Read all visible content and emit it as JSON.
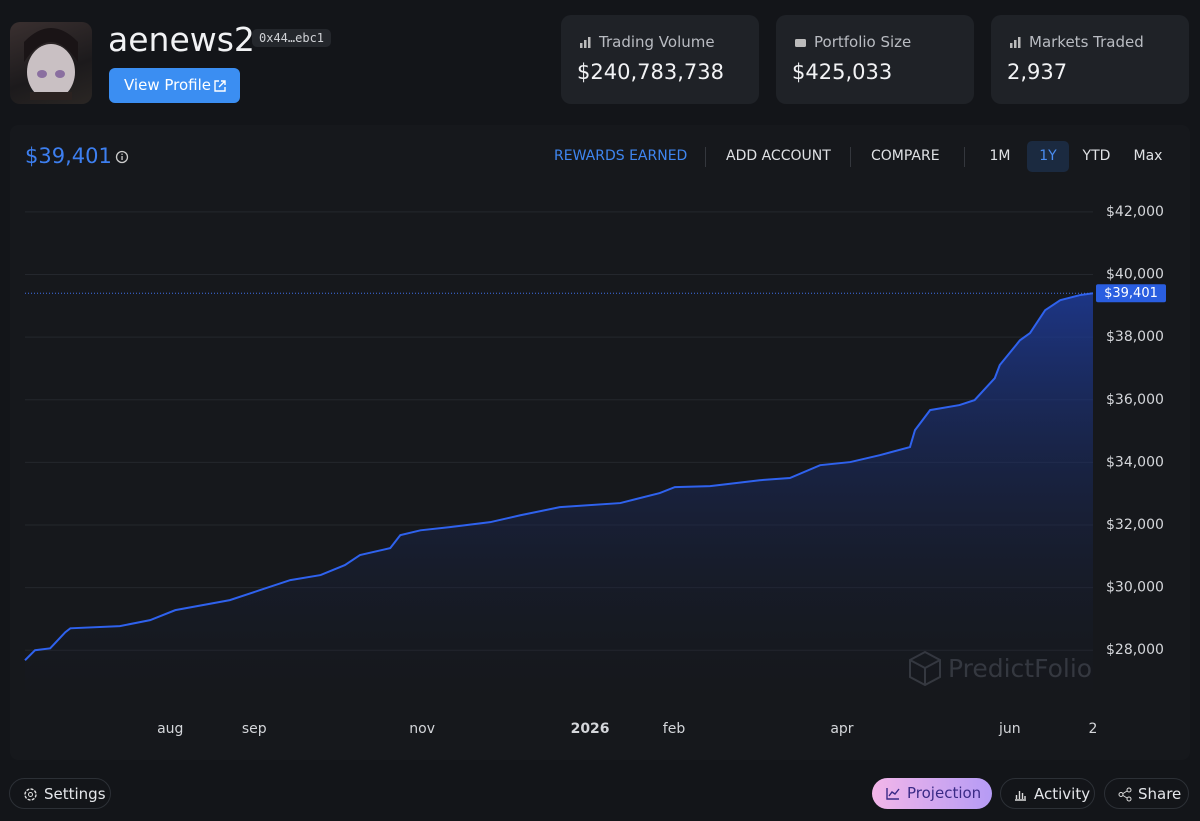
{
  "profile": {
    "username": "aenews2",
    "address": "0x44…ebc1",
    "view_profile": "View Profile"
  },
  "stats": [
    {
      "label": "Trading Volume",
      "value": "$240,783,738"
    },
    {
      "label": "Portfolio Size",
      "value": "$425,033"
    },
    {
      "label": "Markets Traded",
      "value": "2,937"
    }
  ],
  "nav": {
    "rewards": "REWARDS EARNED",
    "add_account": "ADD ACCOUNT",
    "compare": "COMPARE"
  },
  "ranges": [
    "1M",
    "1Y",
    "YTD",
    "Max"
  ],
  "selected_range": "1Y",
  "chart_data": {
    "type": "area",
    "color": "#2f62ee",
    "grid": true,
    "watermark": "PredictFolio",
    "reference": {
      "value": 39401,
      "label": "$39,401"
    },
    "x": [
      -1.73,
      -1.61,
      -1.43,
      -1.25,
      -1.19,
      -0.6,
      -0.24,
      0.06,
      0.71,
      1.07,
      1.43,
      1.79,
      2.08,
      2.26,
      2.62,
      2.74,
      2.98,
      3.33,
      3.81,
      4.17,
      4.64,
      5.36,
      5.83,
      6.01,
      6.43,
      7.02,
      7.38,
      7.74,
      8.1,
      8.45,
      8.81,
      8.87,
      9.05,
      9.4,
      9.58,
      9.82,
      9.88,
      10.12,
      10.24,
      10.42,
      10.6,
      10.83,
      10.99
    ],
    "values": [
      27680,
      28000,
      28060,
      28575,
      28700,
      28770,
      28960,
      29280,
      29600,
      29920,
      30240,
      30400,
      30720,
      31040,
      31260,
      31675,
      31830,
      31930,
      32090,
      32310,
      32570,
      32700,
      33020,
      33210,
      33240,
      33430,
      33500,
      33910,
      34010,
      34230,
      34490,
      35030,
      35670,
      35830,
      35990,
      36690,
      37110,
      37900,
      38130,
      38860,
      39180,
      39340,
      39401
    ],
    "xlim": [
      -1.73,
      10.99
    ],
    "ylim": [
      26250,
      42700
    ],
    "xticks": [
      {
        "value": 0,
        "label": "aug"
      },
      {
        "value": 1,
        "label": "sep"
      },
      {
        "value": 3,
        "label": "nov"
      },
      {
        "value": 5,
        "label": "2026"
      },
      {
        "value": 6,
        "label": "feb"
      },
      {
        "value": 8,
        "label": "apr"
      },
      {
        "value": 10,
        "label": "jun"
      },
      {
        "value": 10.99,
        "label": "2"
      }
    ],
    "yticks": [
      {
        "value": 28000,
        "label": "$28,000"
      },
      {
        "value": 30000,
        "label": "$30,000"
      },
      {
        "value": 32000,
        "label": "$32,000"
      },
      {
        "value": 34000,
        "label": "$34,000"
      },
      {
        "value": 36000,
        "label": "$36,000"
      },
      {
        "value": 38000,
        "label": "$38,000"
      },
      {
        "value": 40000,
        "label": "$40,000"
      },
      {
        "value": 42000,
        "label": "$42,000"
      }
    ]
  },
  "footer": {
    "settings": "Settings",
    "projection": "Projection",
    "activity": "Activity",
    "share": "Share"
  }
}
